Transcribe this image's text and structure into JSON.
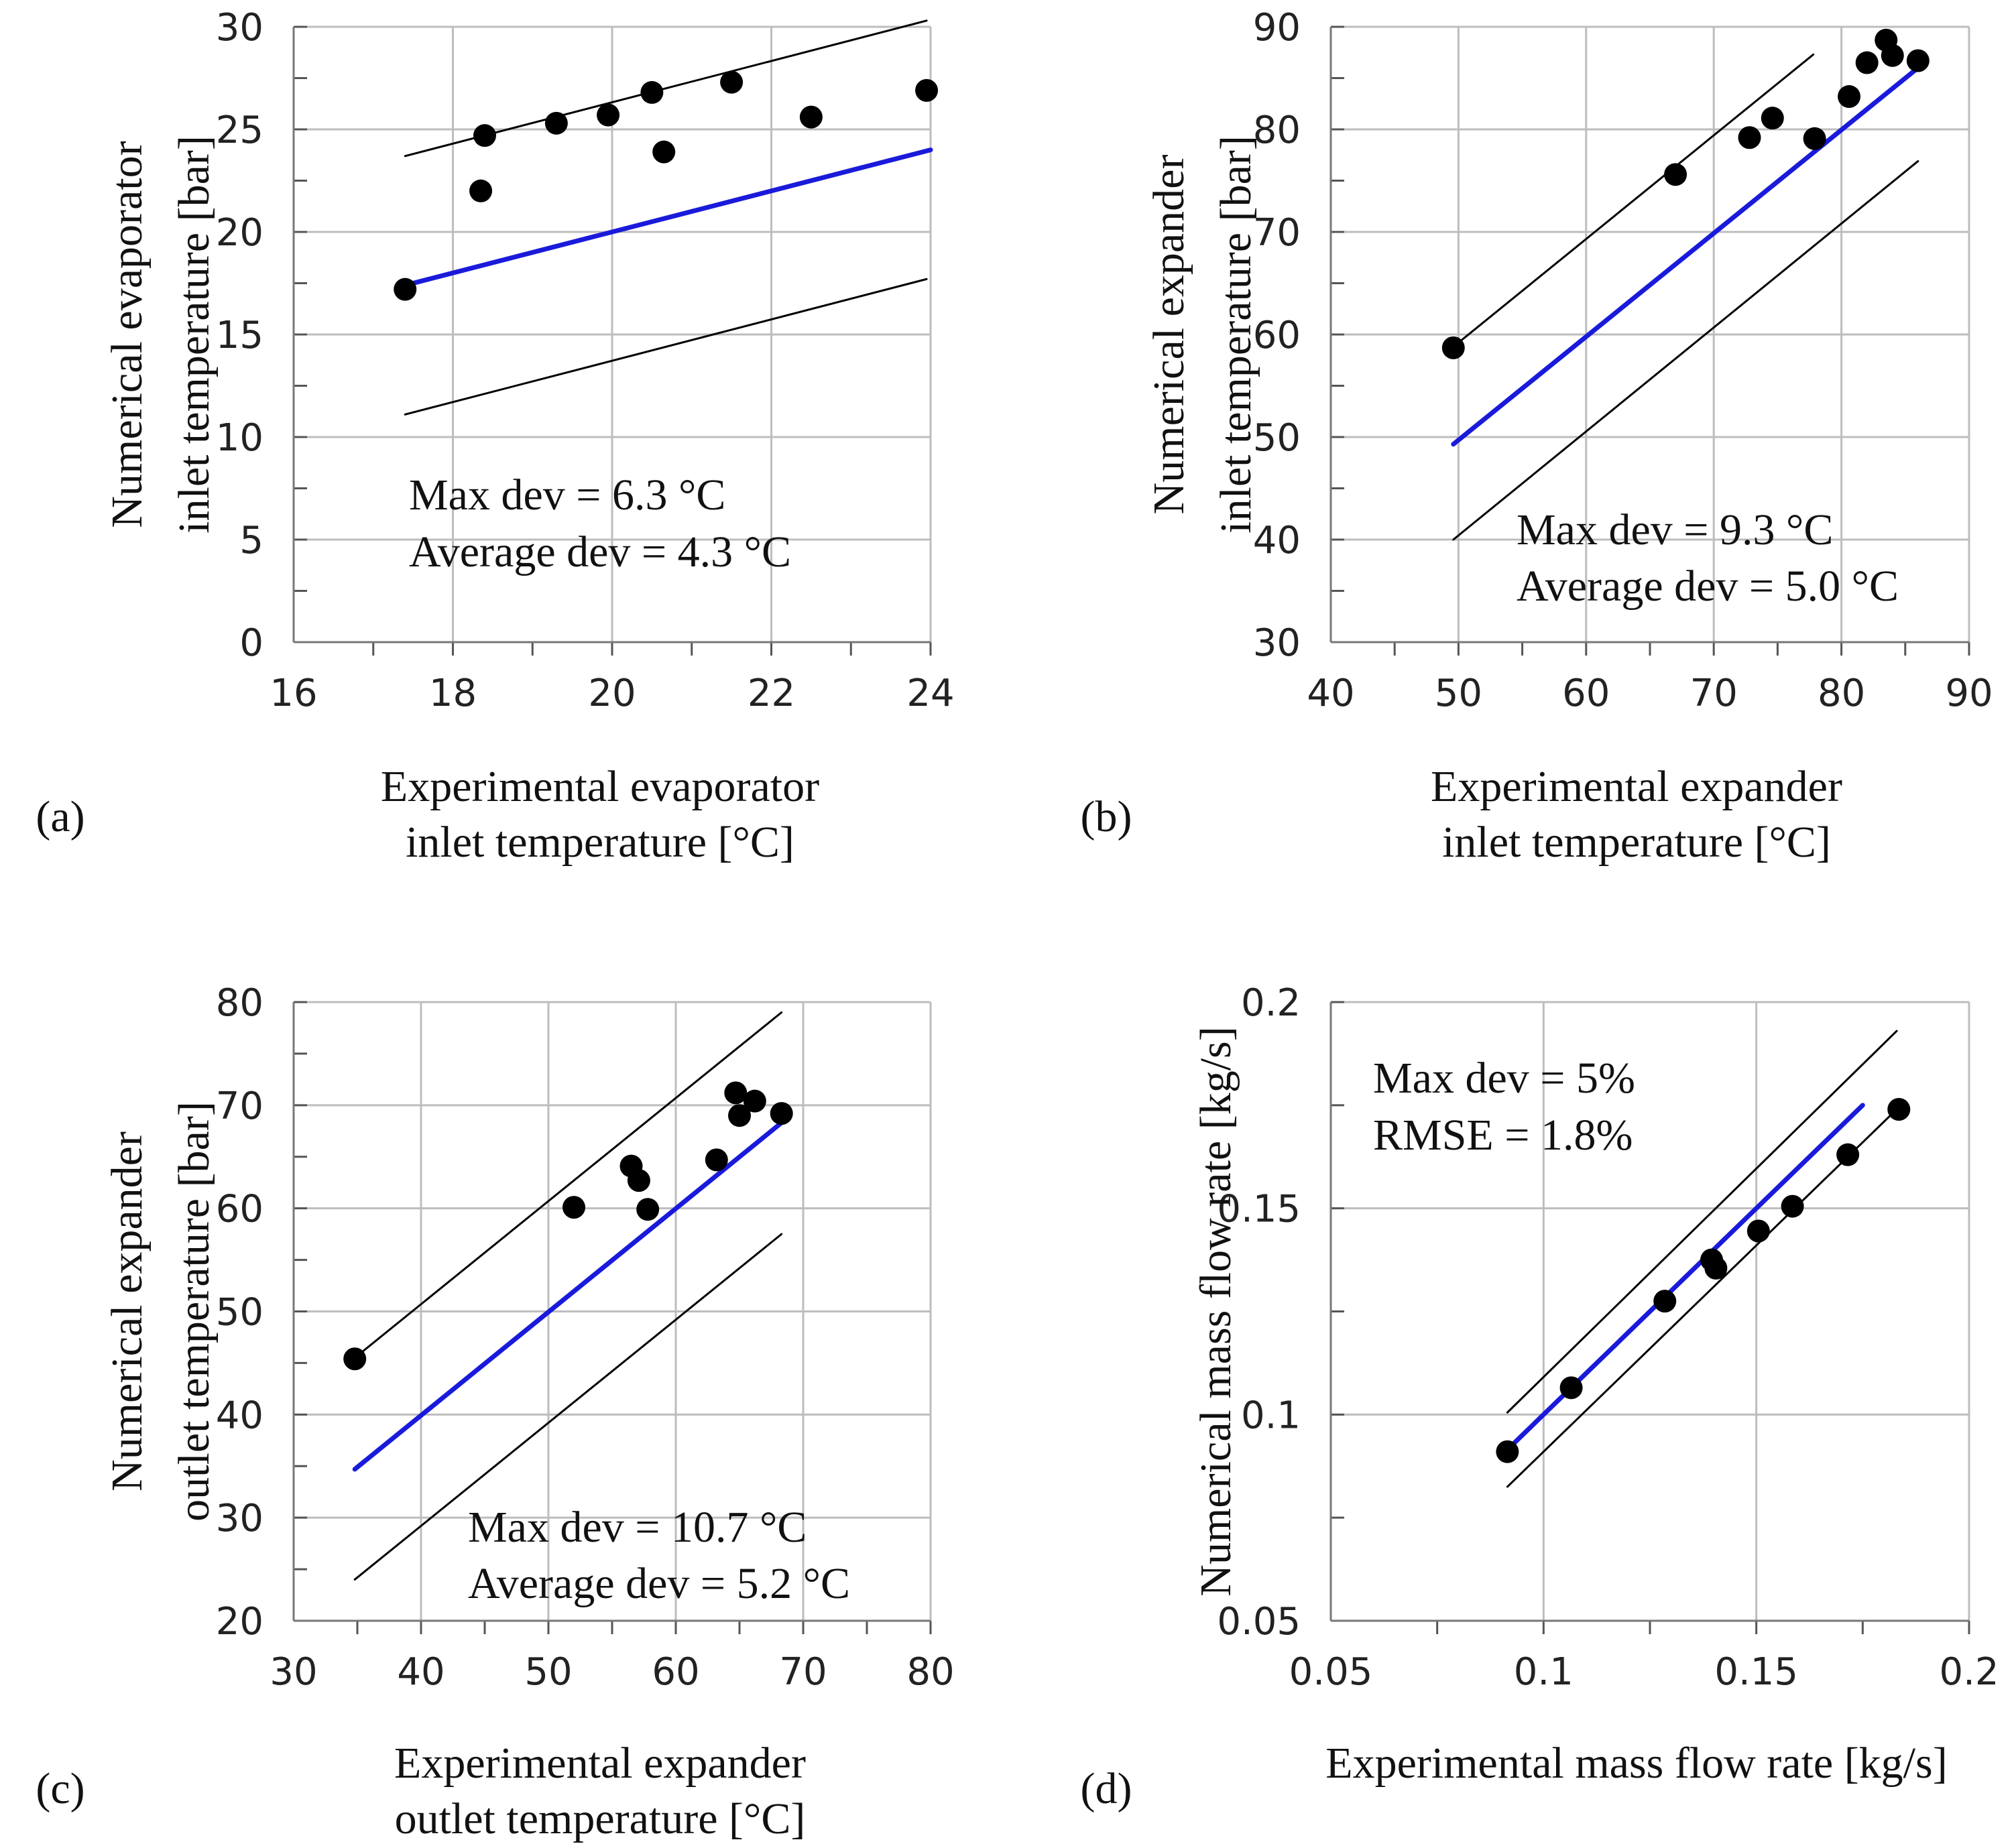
{
  "chart_data": [
    {
      "type": "scatter",
      "panel_label": "(a)",
      "xlabel_lines": [
        "Experimental evaporator",
        "inlet temperature [°C]"
      ],
      "ylabel_lines": [
        "Numerical evaporator",
        "inlet temperature [bar]"
      ],
      "xlim": [
        16,
        24
      ],
      "ylim": [
        0,
        30
      ],
      "xticks": [
        16,
        18,
        20,
        22,
        24
      ],
      "yticks": [
        0,
        5,
        10,
        15,
        20,
        25,
        30
      ],
      "xtick_labels": [
        "16",
        "18",
        "20",
        "22",
        "24"
      ],
      "ytick_labels": [
        "0",
        "5",
        "10",
        "15",
        "20",
        "25",
        "30"
      ],
      "x_minor_step": 1,
      "y_minor_step": 2.5,
      "points": [
        [
          17.4,
          17.2
        ],
        [
          18.35,
          22.0
        ],
        [
          18.4,
          24.7
        ],
        [
          19.3,
          25.3
        ],
        [
          19.95,
          25.7
        ],
        [
          20.5,
          26.8
        ],
        [
          20.65,
          23.9
        ],
        [
          21.5,
          27.3
        ],
        [
          22.5,
          25.6
        ],
        [
          23.95,
          26.9
        ]
      ],
      "series": [
        {
          "name": "ideal",
          "color": "#1a1adb",
          "from": [
            17.4,
            17.4
          ],
          "to": [
            24.0,
            24.0
          ]
        },
        {
          "name": "upper-bound",
          "color": "#000000",
          "from": [
            17.4,
            23.7
          ],
          "to": [
            23.95,
            30.3
          ]
        },
        {
          "name": "lower-bound",
          "color": "#000000",
          "from": [
            17.4,
            11.1
          ],
          "to": [
            23.95,
            17.7
          ]
        }
      ],
      "annotations": [
        "Max dev = 6.3 °C",
        "Average dev = 4.3 °C"
      ]
    },
    {
      "type": "scatter",
      "panel_label": "(b)",
      "xlabel_lines": [
        "Experimental expander",
        "inlet temperature [°C]"
      ],
      "ylabel_lines": [
        "Numerical expander",
        "inlet temperature [bar]"
      ],
      "xlim": [
        40,
        90
      ],
      "ylim": [
        30,
        90
      ],
      "xticks": [
        40,
        50,
        60,
        70,
        80,
        90
      ],
      "yticks": [
        30,
        40,
        50,
        60,
        70,
        80,
        90
      ],
      "xtick_labels": [
        "40",
        "50",
        "60",
        "70",
        "80",
        "90"
      ],
      "ytick_labels": [
        "30",
        "40",
        "50",
        "60",
        "70",
        "80",
        "90"
      ],
      "x_minor_step": 5,
      "y_minor_step": 5,
      "points": [
        [
          49.6,
          58.7
        ],
        [
          67.0,
          75.6
        ],
        [
          72.8,
          79.2
        ],
        [
          74.6,
          81.1
        ],
        [
          77.9,
          79.1
        ],
        [
          80.6,
          83.2
        ],
        [
          82.0,
          86.5
        ],
        [
          83.5,
          88.7
        ],
        [
          84.0,
          87.2
        ],
        [
          86.0,
          86.7
        ]
      ],
      "series": [
        {
          "name": "ideal",
          "color": "#1a1adb",
          "from": [
            49.6,
            49.3
          ],
          "to": [
            86.2,
            86.2
          ]
        },
        {
          "name": "upper-bound",
          "color": "#000000",
          "from": [
            49.6,
            58.8
          ],
          "to": [
            77.8,
            87.3
          ]
        },
        {
          "name": "lower-bound",
          "color": "#000000",
          "from": [
            49.6,
            40.0
          ],
          "to": [
            86.0,
            76.9
          ]
        }
      ],
      "annotations": [
        "Max dev = 9.3 °C",
        "Average dev = 5.0 °C"
      ]
    },
    {
      "type": "scatter",
      "panel_label": "(c)",
      "xlabel_lines": [
        "Experimental expander",
        "outlet temperature [°C]"
      ],
      "ylabel_lines": [
        "Numerical expander",
        "outlet temperature [bar]"
      ],
      "xlim": [
        30,
        80
      ],
      "ylim": [
        20,
        80
      ],
      "xticks": [
        30,
        40,
        50,
        60,
        70,
        80
      ],
      "yticks": [
        20,
        30,
        40,
        50,
        60,
        70,
        80
      ],
      "xtick_labels": [
        "30",
        "40",
        "50",
        "60",
        "70",
        "80"
      ],
      "ytick_labels": [
        "20",
        "30",
        "40",
        "50",
        "60",
        "70",
        "80"
      ],
      "x_minor_step": 5,
      "y_minor_step": 5,
      "points": [
        [
          34.8,
          45.4
        ],
        [
          52.0,
          60.1
        ],
        [
          56.5,
          64.1
        ],
        [
          57.1,
          62.7
        ],
        [
          57.8,
          59.9
        ],
        [
          63.2,
          64.7
        ],
        [
          64.7,
          71.2
        ],
        [
          65.0,
          69.0
        ],
        [
          66.2,
          70.4
        ],
        [
          68.3,
          69.2
        ]
      ],
      "series": [
        {
          "name": "ideal",
          "color": "#1a1adb",
          "from": [
            34.8,
            34.7
          ],
          "to": [
            68.4,
            68.4
          ]
        },
        {
          "name": "upper-bound",
          "color": "#000000",
          "from": [
            34.8,
            45.5
          ],
          "to": [
            68.3,
            79.0
          ]
        },
        {
          "name": "lower-bound",
          "color": "#000000",
          "from": [
            34.8,
            24.0
          ],
          "to": [
            68.3,
            57.5
          ]
        }
      ],
      "annotations": [
        "Max dev = 10.7 °C",
        "Average dev = 5.2 °C"
      ]
    },
    {
      "type": "scatter",
      "panel_label": "(d)",
      "xlabel_lines": [
        "Experimental mass flow rate [kg/s]"
      ],
      "ylabel_lines": [
        "Numerical mass flow rate [kg/s]"
      ],
      "xlim": [
        0.05,
        0.2
      ],
      "ylim": [
        0.05,
        0.2
      ],
      "xticks": [
        0.05,
        0.1,
        0.15,
        0.2
      ],
      "yticks": [
        0.05,
        0.1,
        0.15,
        0.2
      ],
      "xtick_labels": [
        "0.05",
        "0.1",
        "0.15",
        "0.2"
      ],
      "ytick_labels": [
        "0.05",
        "0.1",
        "0.15",
        "0.2"
      ],
      "x_minor_step": 0.025,
      "y_minor_step": 0.025,
      "points": [
        [
          0.0915,
          0.091
        ],
        [
          0.1065,
          0.1065
        ],
        [
          0.1285,
          0.1275
        ],
        [
          0.1395,
          0.1375
        ],
        [
          0.1405,
          0.1355
        ],
        [
          0.1505,
          0.1445
        ],
        [
          0.1585,
          0.1505
        ],
        [
          0.1715,
          0.163
        ],
        [
          0.1835,
          0.174
        ]
      ],
      "series": [
        {
          "name": "ideal",
          "color": "#1a1adb",
          "from": [
            0.0915,
            0.0915
          ],
          "to": [
            0.175,
            0.175
          ]
        },
        {
          "name": "upper-bound",
          "color": "#000000",
          "from": [
            0.0915,
            0.1005
          ],
          "to": [
            0.183,
            0.193
          ]
        },
        {
          "name": "lower-bound",
          "color": "#000000",
          "from": [
            0.0915,
            0.0825
          ],
          "to": [
            0.1835,
            0.1745
          ]
        }
      ],
      "annotations": [
        "Max dev = 5%",
        "RMSE = 1.8%"
      ]
    }
  ]
}
